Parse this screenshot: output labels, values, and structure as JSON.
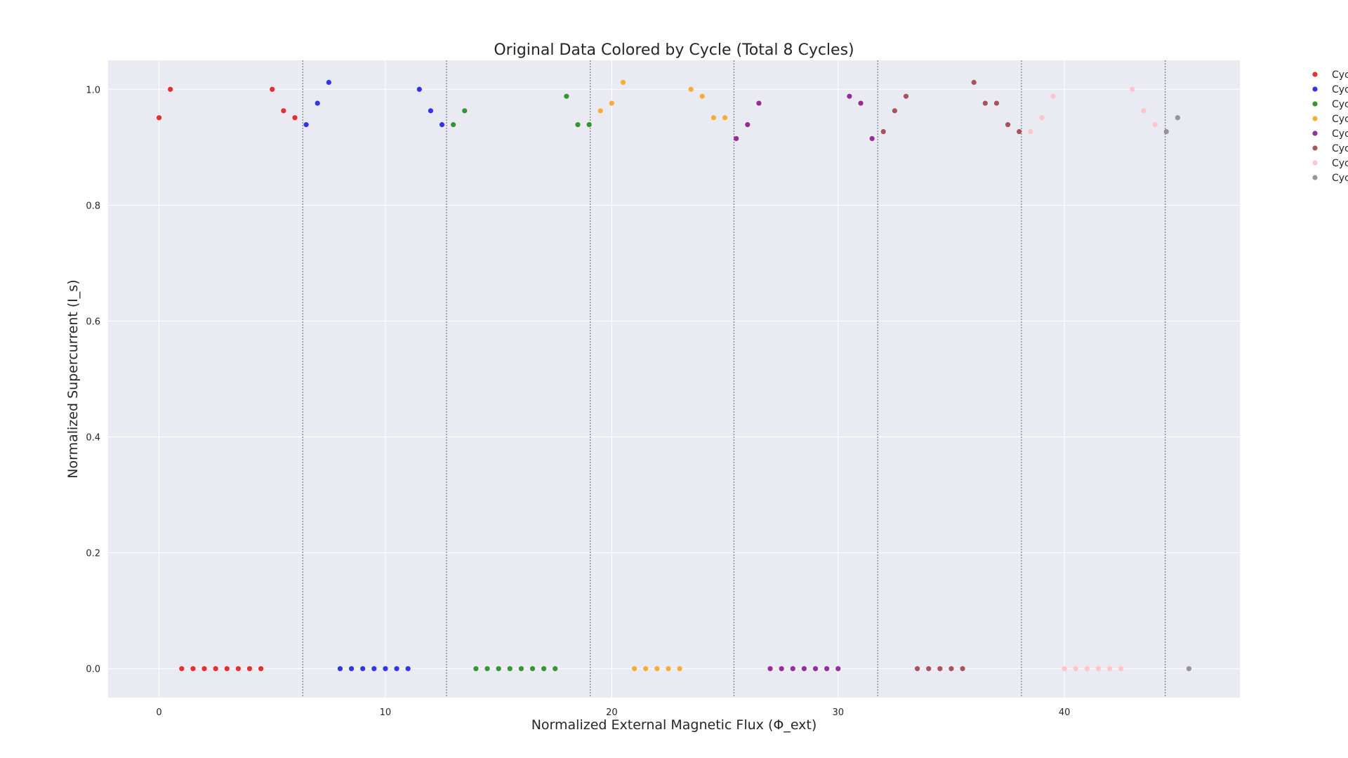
{
  "chart_data": {
    "type": "scatter",
    "title": "Original Data Colored by Cycle (Total 8 Cycles)",
    "xlabel": "Normalized External Magnetic Flux (Φ_ext)",
    "ylabel": "Normalized Supercurrent (I_s)",
    "xlim": [
      -2.25,
      47.75
    ],
    "ylim": [
      -0.05,
      1.05
    ],
    "xticks": [
      0,
      10,
      20,
      30,
      40
    ],
    "yticks": [
      0.0,
      0.2,
      0.4,
      0.6,
      0.8,
      1.0
    ],
    "xtick_labels": [
      "0",
      "10",
      "20",
      "30",
      "40"
    ],
    "ytick_labels": [
      "0.0",
      "0.2",
      "0.4",
      "0.6",
      "0.8",
      "1.0"
    ],
    "grid": true,
    "legend_position": "outside-top-right",
    "cycle_boundaries": [
      6.35,
      12.7,
      19.05,
      25.4,
      31.75,
      38.1,
      44.45
    ],
    "series": [
      {
        "name": "Cyc",
        "color": "#e41a1c",
        "x": [
          0,
          0.5,
          1,
          1.5,
          2,
          2.5,
          3,
          3.5,
          4,
          4.5,
          5,
          5.5,
          6
        ],
        "y": [
          0.951,
          1.0,
          0,
          0,
          0,
          0,
          0,
          0,
          0,
          0,
          1.0,
          0.963,
          0.951
        ]
      },
      {
        "name": "Cyc",
        "color": "#1f1fe6",
        "x": [
          6.5,
          7,
          7.5,
          8,
          8.5,
          9,
          9.5,
          10,
          10.5,
          11,
          11.5,
          12,
          12.5
        ],
        "y": [
          0.939,
          0.976,
          1.012,
          0,
          0,
          0,
          0,
          0,
          0,
          0,
          1.0,
          0.963,
          0.939
        ]
      },
      {
        "name": "Cyc",
        "color": "#228b22",
        "x": [
          13,
          13.5,
          14,
          14.5,
          15,
          15.5,
          16,
          16.5,
          17,
          17.5,
          18,
          18.5,
          19
        ],
        "y": [
          0.939,
          0.963,
          0,
          0,
          0,
          0,
          0,
          0,
          0,
          0,
          0.988,
          0.939,
          0.939
        ]
      },
      {
        "name": "Cyc",
        "color": "#f5a623",
        "x": [
          19.5,
          20,
          20.5,
          21,
          21.5,
          22,
          22.5,
          23,
          23.5,
          24,
          24.5,
          25
        ],
        "y": [
          0.963,
          0.976,
          1.012,
          0,
          0,
          0,
          0,
          0,
          1.0,
          0.988,
          0.951,
          0.951
        ]
      },
      {
        "name": "Cyc",
        "color": "#8b1a8b",
        "x": [
          25.5,
          26,
          26.5,
          27,
          27.5,
          28,
          28.5,
          29,
          29.5,
          30,
          30.5,
          31,
          31.5
        ],
        "y": [
          0.915,
          0.939,
          0.976,
          0,
          0,
          0,
          0,
          0,
          0,
          0,
          0.988,
          0.976,
          0.915
        ]
      },
      {
        "name": "Cyc",
        "color": "#a0434a",
        "x": [
          32,
          32.5,
          33,
          33.5,
          34,
          34.5,
          35,
          35.5,
          36,
          36.5,
          37,
          37.5,
          38
        ],
        "y": [
          0.927,
          0.963,
          0.988,
          0,
          0,
          0,
          0,
          0,
          1.012,
          0.976,
          0.976,
          0.939,
          0.927
        ]
      },
      {
        "name": "Cyc",
        "color": "#ffc0cb",
        "x": [
          38.5,
          39,
          39.5,
          40,
          40.5,
          41,
          41.5,
          42,
          42.5,
          43,
          43.5,
          44
        ],
        "y": [
          0.927,
          0.951,
          0.988,
          0,
          0,
          0,
          0,
          0,
          0,
          1.0,
          0.963,
          0.939
        ]
      },
      {
        "name": "Cyc",
        "color": "#8c8c8c",
        "x": [
          44.5,
          45,
          45.5
        ],
        "y": [
          0.927,
          0.951,
          0
        ]
      }
    ]
  }
}
